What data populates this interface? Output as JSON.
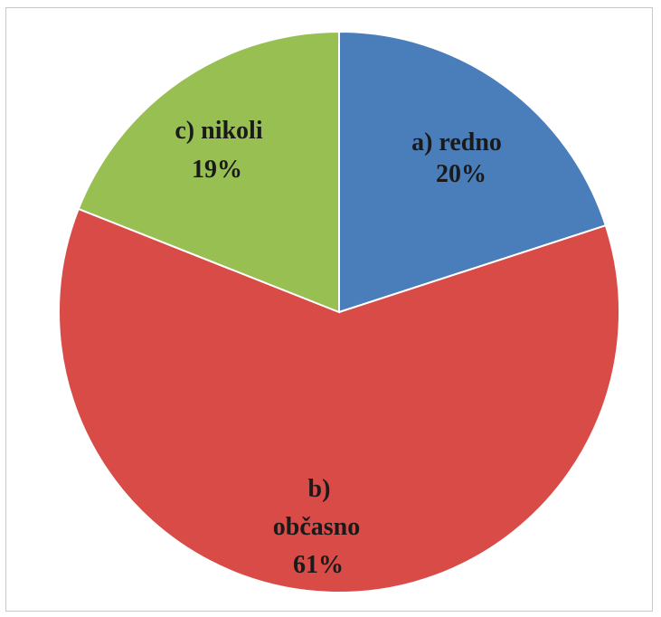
{
  "chart_data": {
    "type": "pie",
    "title": "",
    "start_angle_deg": 0,
    "direction": "clockwise",
    "slices": [
      {
        "label": "a) redno",
        "value": 20,
        "percent_label": "20%",
        "color": "#4a7ebb"
      },
      {
        "label": "b) občasno",
        "value": 61,
        "percent_label": "61%",
        "color": "#d84b47"
      },
      {
        "label": "c) nikoli",
        "value": 19,
        "percent_label": "19%",
        "color": "#98bf52"
      }
    ],
    "legend": "none"
  }
}
